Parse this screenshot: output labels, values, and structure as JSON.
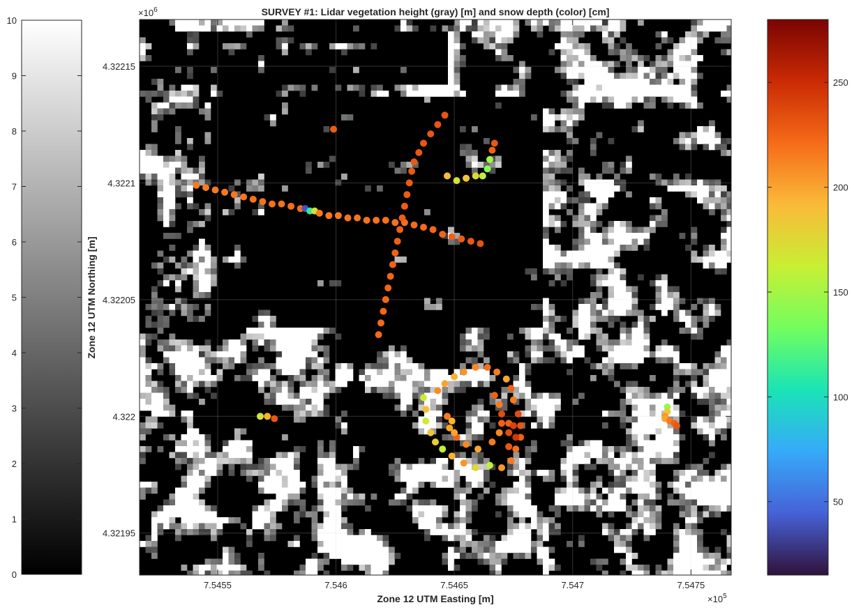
{
  "chart_data": {
    "type": "scatter",
    "title": "SURVEY #1: Lidar vegetation height (gray) [m] and snow depth (color) [cm]",
    "xlabel": "Zone 12 UTM Easting [m]",
    "ylabel": "Zone 12 UTM Northing [m]",
    "x_exponent": "×10",
    "x_exponent_power": "5",
    "y_exponent": "×10",
    "y_exponent_power": "6",
    "xlim": [
      754517,
      754767
    ],
    "ylim": [
      4321932,
      4322170
    ],
    "xticks": [
      {
        "value": 754550,
        "label": "7.5455"
      },
      {
        "value": 754600,
        "label": "7.546"
      },
      {
        "value": 754650,
        "label": "7.5465"
      },
      {
        "value": 754700,
        "label": "7.547"
      },
      {
        "value": 754750,
        "label": "7.5475"
      }
    ],
    "yticks": [
      {
        "value": 4321950,
        "label": "4.32195"
      },
      {
        "value": 4322000,
        "label": "4.322"
      },
      {
        "value": 4322050,
        "label": "4.32205"
      },
      {
        "value": 4322100,
        "label": "4.3221"
      },
      {
        "value": 4322150,
        "label": "4.32215"
      }
    ],
    "gray_colorbar": {
      "range": [
        0,
        10
      ],
      "ticks": [
        "0",
        "1",
        "2",
        "3",
        "4",
        "5",
        "6",
        "7",
        "8",
        "9",
        "10"
      ],
      "colors": [
        "#000000",
        "#ffffff"
      ]
    },
    "color_colorbar": {
      "range": [
        15,
        280
      ],
      "ticks": [
        {
          "value": 50,
          "label": "50"
        },
        {
          "value": 100,
          "label": "100"
        },
        {
          "value": 150,
          "label": "150"
        },
        {
          "value": 200,
          "label": "200"
        },
        {
          "value": 250,
          "label": "250"
        }
      ],
      "colors": [
        "#30123b",
        "#4662d7",
        "#36aaf9",
        "#1ae4b6",
        "#72fe5e",
        "#c8ef34",
        "#faba39",
        "#f66b19",
        "#ca2a04",
        "#7a0403"
      ]
    },
    "series": [
      {
        "points": [
          [
            754541,
            4322099,
            215
          ],
          [
            754545,
            4322098,
            215
          ],
          [
            754549,
            4322097,
            216
          ],
          [
            754553,
            4322096,
            216
          ],
          [
            754557,
            4322095,
            217
          ],
          [
            754561,
            4322094,
            217
          ],
          [
            754565,
            4322093,
            218
          ],
          [
            754569,
            4322092,
            218
          ],
          [
            754573,
            4322091,
            219
          ],
          [
            754577,
            4322091,
            219
          ],
          [
            754581,
            4322090,
            220
          ],
          [
            754585,
            4322089,
            220
          ],
          [
            754587,
            4322089,
            40
          ],
          [
            754589,
            4322088,
            110
          ],
          [
            754591,
            4322088,
            170
          ],
          [
            754593,
            4322087,
            215
          ],
          [
            754597,
            4322086,
            216
          ],
          [
            754601,
            4322086,
            216
          ],
          [
            754605,
            4322085,
            217
          ],
          [
            754609,
            4322085,
            217
          ],
          [
            754613,
            4322084,
            218
          ],
          [
            754617,
            4322084,
            218
          ],
          [
            754621,
            4322084,
            219
          ],
          [
            754625,
            4322083,
            219
          ],
          [
            754629,
            4322083,
            220
          ],
          [
            754633,
            4322082,
            221
          ],
          [
            754637,
            4322081,
            222
          ],
          [
            754641,
            4322080,
            223
          ],
          [
            754645,
            4322078,
            224
          ],
          [
            754649,
            4322077,
            226
          ],
          [
            754653,
            4322076,
            228
          ],
          [
            754657,
            4322075,
            230
          ],
          [
            754661,
            4322074,
            232
          ],
          [
            754599,
            4322123,
            228
          ],
          [
            754618,
            4322035,
            222
          ],
          [
            754619,
            4322040,
            222
          ],
          [
            754620,
            4322045,
            223
          ],
          [
            754621,
            4322050,
            223
          ],
          [
            754622,
            4322055,
            224
          ],
          [
            754623,
            4322060,
            224
          ],
          [
            754624,
            4322065,
            225
          ],
          [
            754625,
            4322070,
            225
          ],
          [
            754626,
            4322075,
            226
          ],
          [
            754627,
            4322080,
            226
          ],
          [
            754628,
            4322085,
            227
          ],
          [
            754629,
            4322090,
            227
          ],
          [
            754630,
            4322095,
            228
          ],
          [
            754631,
            4322100,
            228
          ],
          [
            754632,
            4322105,
            229
          ],
          [
            754633,
            4322109,
            229
          ],
          [
            754635,
            4322113,
            230
          ],
          [
            754637,
            4322117,
            230
          ],
          [
            754640,
            4322121,
            230
          ],
          [
            754643,
            4322125,
            231
          ],
          [
            754646,
            4322129,
            231
          ],
          [
            754647,
            4322103,
            190
          ],
          [
            754651,
            4322101,
            170
          ],
          [
            754655,
            4322102,
            185
          ],
          [
            754659,
            4322103,
            175
          ],
          [
            754662,
            4322103,
            160
          ],
          [
            754664,
            4322106,
            140
          ],
          [
            754665,
            4322110,
            150
          ],
          [
            754666,
            4322114,
            225
          ],
          [
            754667,
            4322117,
            230
          ],
          [
            754568,
            4322000,
            170
          ],
          [
            754571,
            4322000,
            195
          ],
          [
            754574,
            4321999,
            230
          ],
          [
            754637,
            4322008,
            165
          ],
          [
            754638,
            4322003,
            190
          ],
          [
            754638,
            4321998,
            165
          ],
          [
            754640,
            4321993,
            185
          ],
          [
            754642,
            4321989,
            180
          ],
          [
            754645,
            4321986,
            160
          ],
          [
            754649,
            4321983,
            195
          ],
          [
            754654,
            4321980,
            205
          ],
          [
            754659,
            4321978,
            175
          ],
          [
            754665,
            4321979,
            160
          ],
          [
            754670,
            4321978,
            205
          ],
          [
            754674,
            4321981,
            215
          ],
          [
            754676,
            4321986,
            220
          ],
          [
            754678,
            4321991,
            225
          ],
          [
            754678,
            4321996,
            230
          ],
          [
            754677,
            4322001,
            235
          ],
          [
            754675,
            4322007,
            215
          ],
          [
            754674,
            4322012,
            225
          ],
          [
            754672,
            4322016,
            200
          ],
          [
            754668,
            4322019,
            215
          ],
          [
            754664,
            4322021,
            220
          ],
          [
            754659,
            4322021,
            210
          ],
          [
            754654,
            4322019,
            205
          ],
          [
            754650,
            4322017,
            195
          ],
          [
            754646,
            4322014,
            200
          ],
          [
            754643,
            4322011,
            210
          ],
          [
            754647,
            4322000,
            215
          ],
          [
            754648,
            4321995,
            200
          ],
          [
            754651,
            4321991,
            225
          ],
          [
            754655,
            4321988,
            210
          ],
          [
            754660,
            4321986,
            200
          ],
          [
            754666,
            4321989,
            215
          ],
          [
            754669,
            4321993,
            210
          ],
          [
            754670,
            4321997,
            225
          ],
          [
            754670,
            4322001,
            235
          ],
          [
            754669,
            4322005,
            215
          ],
          [
            754667,
            4322009,
            225
          ],
          [
            754649,
            4321998,
            195
          ],
          [
            754650,
            4321993,
            200
          ],
          [
            754673,
            4321997,
            225
          ],
          [
            754673,
            4321987,
            230
          ],
          [
            754673,
            4321993,
            235
          ],
          [
            754676,
            4321991,
            245
          ],
          [
            754675,
            4321996,
            240
          ],
          [
            754740,
            4322004,
            145
          ],
          [
            754740,
            4322002,
            185
          ],
          [
            754739,
            4322000,
            205
          ],
          [
            754739,
            4321999,
            200
          ],
          [
            754741,
            4321998,
            215
          ],
          [
            754743,
            4321997,
            225
          ],
          [
            754744,
            4321996,
            230
          ]
        ]
      }
    ]
  }
}
